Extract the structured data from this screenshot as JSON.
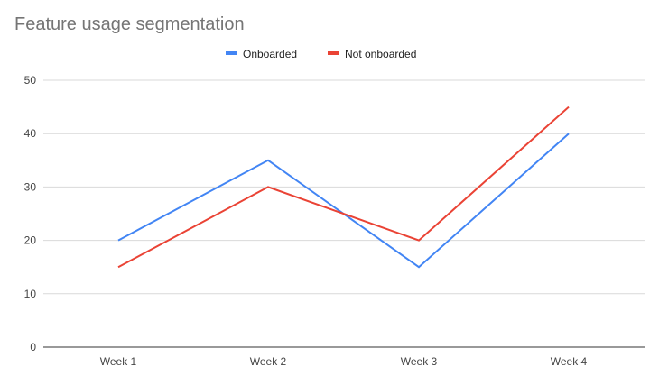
{
  "chart_data": {
    "type": "line",
    "title": "Feature usage segmentation",
    "categories": [
      "Week 1",
      "Week 2",
      "Week 3",
      "Week 4"
    ],
    "series": [
      {
        "name": "Onboarded",
        "values": [
          20,
          35,
          15,
          40
        ],
        "color": "#4285f4"
      },
      {
        "name": "Not onboarded",
        "values": [
          15,
          30,
          20,
          45
        ],
        "color": "#ea4335"
      }
    ],
    "ylim": [
      0,
      50
    ],
    "yticks": [
      0,
      10,
      20,
      30,
      40,
      50
    ],
    "grid": true,
    "legend": "top"
  }
}
